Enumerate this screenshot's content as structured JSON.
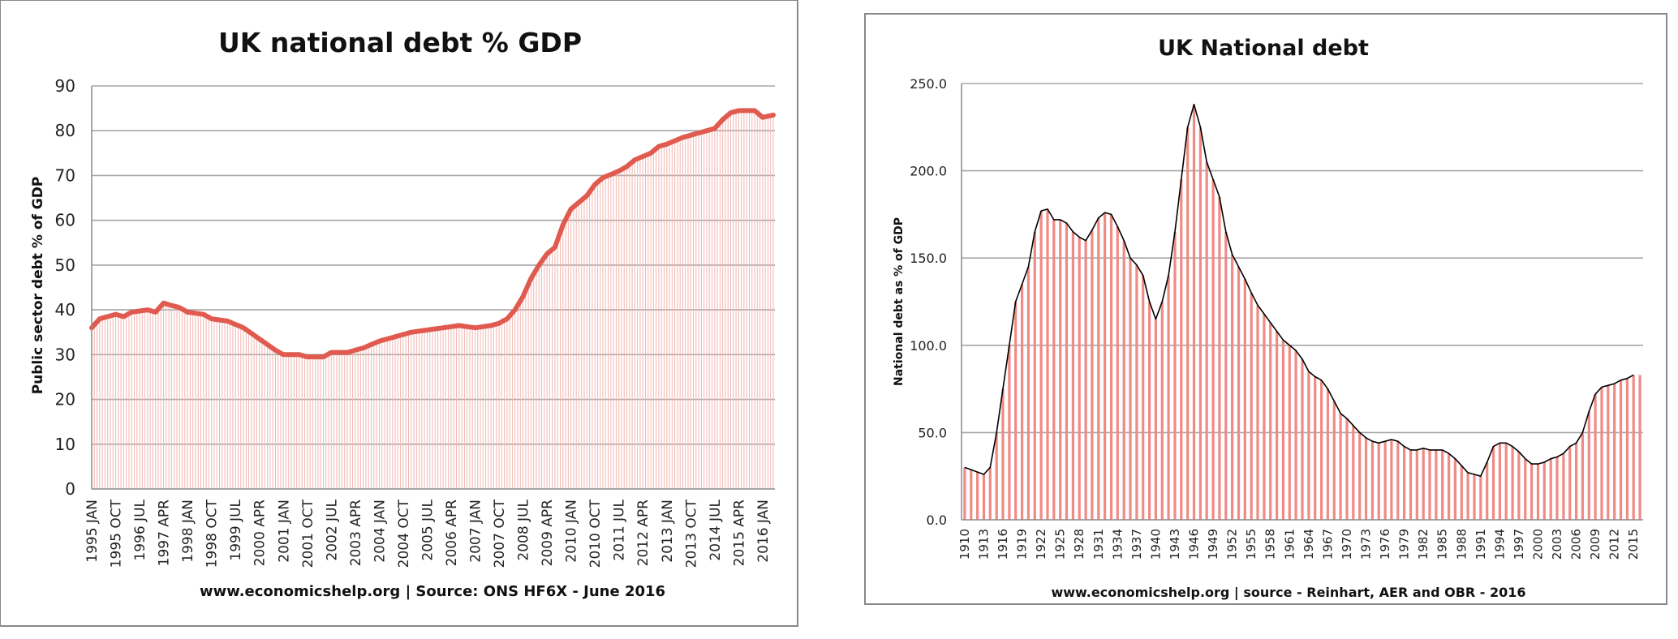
{
  "chart_data": [
    {
      "type": "area",
      "title": "UK national debt % GDP",
      "ylabel": "Public sector debt % of GDP",
      "xlabel": "",
      "source": "www.economicshelp.org | Source: ONS HF6X - June 2016",
      "ylim": [
        0,
        90
      ],
      "yticks": [
        "0",
        "10",
        "20",
        "30",
        "40",
        "50",
        "60",
        "70",
        "80",
        "90"
      ],
      "xtick_labels": [
        "1995 JAN",
        "1995 OCT",
        "1996 JUL",
        "1997 APR",
        "1998 JAN",
        "1998 OCT",
        "1999 JUL",
        "2000 APR",
        "2001 JAN",
        "2001 OCT",
        "2002 JUL",
        "2003 APR",
        "2004 JAN",
        "2004 OCT",
        "2005 JUL",
        "2006 APR",
        "2007 JAN",
        "2007 OCT",
        "2008 JUL",
        "2009 APR",
        "2010 JAN",
        "2010 OCT",
        "2011 JUL",
        "2012 APR",
        "2013 JAN",
        "2013 OCT",
        "2014 JUL",
        "2015 APR",
        "2016 JAN"
      ],
      "grid": true,
      "legend": "none",
      "colors": {
        "line": "#e05a4f",
        "bars": "#f3b6b1",
        "grid": "#a6a6a6"
      },
      "x_start": "1995 JAN",
      "x_end": "2016 MAY",
      "series": [
        {
          "anchors": [
            [
              "1995-01",
              36
            ],
            [
              "1995-04",
              38
            ],
            [
              "1995-10",
              39
            ],
            [
              "1996-01",
              38.5
            ],
            [
              "1996-04",
              39.5
            ],
            [
              "1996-10",
              40
            ],
            [
              "1997-01",
              39.5
            ],
            [
              "1997-04",
              41.5
            ],
            [
              "1997-10",
              40.5
            ],
            [
              "1998-01",
              39.5
            ],
            [
              "1998-07",
              39
            ],
            [
              "1998-10",
              38
            ],
            [
              "1999-04",
              37.5
            ],
            [
              "1999-10",
              36
            ],
            [
              "2000-04",
              33.5
            ],
            [
              "2000-10",
              31
            ],
            [
              "2001-01",
              30
            ],
            [
              "2001-07",
              30
            ],
            [
              "2001-10",
              29.5
            ],
            [
              "2002-04",
              29.5
            ],
            [
              "2002-07",
              30.5
            ],
            [
              "2003-01",
              30.5
            ],
            [
              "2003-07",
              31.5
            ],
            [
              "2004-01",
              33
            ],
            [
              "2004-07",
              34
            ],
            [
              "2005-01",
              35
            ],
            [
              "2005-07",
              35.5
            ],
            [
              "2006-01",
              36
            ],
            [
              "2006-07",
              36.5
            ],
            [
              "2007-01",
              36
            ],
            [
              "2007-07",
              36.5
            ],
            [
              "2007-10",
              37
            ],
            [
              "2008-01",
              38
            ],
            [
              "2008-04",
              40
            ],
            [
              "2008-07",
              43
            ],
            [
              "2008-10",
              47
            ],
            [
              "2009-01",
              50
            ],
            [
              "2009-04",
              52.5
            ],
            [
              "2009-07",
              54
            ],
            [
              "2009-10",
              59
            ],
            [
              "2010-01",
              62.5
            ],
            [
              "2010-07",
              65.5
            ],
            [
              "2010-10",
              68
            ],
            [
              "2011-01",
              69.5
            ],
            [
              "2011-07",
              71
            ],
            [
              "2011-10",
              72
            ],
            [
              "2012-01",
              73.5
            ],
            [
              "2012-07",
              75
            ],
            [
              "2012-10",
              76.5
            ],
            [
              "2013-01",
              77
            ],
            [
              "2013-07",
              78.5
            ],
            [
              "2013-10",
              79
            ],
            [
              "2014-01",
              79.5
            ],
            [
              "2014-07",
              80.5
            ],
            [
              "2014-10",
              82.5
            ],
            [
              "2015-01",
              84
            ],
            [
              "2015-04",
              84.5
            ],
            [
              "2015-10",
              84.5
            ],
            [
              "2016-01",
              83
            ],
            [
              "2016-05",
              83.5
            ]
          ]
        }
      ]
    },
    {
      "type": "area",
      "title": "UK National debt",
      "ylabel": "National debt as % of GDP",
      "xlabel": "",
      "source": "www.economicshelp.org | source - Reinhart, AER and OBR - 2016",
      "ylim": [
        0,
        250
      ],
      "yticks": [
        "0.0",
        "50.0",
        "100.0",
        "150.0",
        "200.0",
        "250.0"
      ],
      "xtick_labels": [
        "1910",
        "1913",
        "1916",
        "1919",
        "1922",
        "1925",
        "1928",
        "1931",
        "1934",
        "1937",
        "1940",
        "1943",
        "1946",
        "1949",
        "1952",
        "1955",
        "1958",
        "1961",
        "1964",
        "1967",
        "1970",
        "1973",
        "1976",
        "1979",
        "1982",
        "1985",
        "1988",
        "1991",
        "1994",
        "1997",
        "2000",
        "2003",
        "2006",
        "2009",
        "2012",
        "2015"
      ],
      "grid": true,
      "legend": "none",
      "colors": {
        "line": "#000000",
        "bars": "#f08a84",
        "grid": "#a6a6a6"
      },
      "x_start": 1910,
      "x_end": 2016,
      "series": [
        {
          "anchors": [
            [
              1910,
              30
            ],
            [
              1913,
              26
            ],
            [
              1914,
              30
            ],
            [
              1915,
              50
            ],
            [
              1916,
              75
            ],
            [
              1917,
              100
            ],
            [
              1918,
              125
            ],
            [
              1919,
              135
            ],
            [
              1920,
              145
            ],
            [
              1921,
              165
            ],
            [
              1922,
              177
            ],
            [
              1923,
              178
            ],
            [
              1924,
              172
            ],
            [
              1925,
              172
            ],
            [
              1926,
              170
            ],
            [
              1927,
              165
            ],
            [
              1928,
              162
            ],
            [
              1929,
              160
            ],
            [
              1930,
              166
            ],
            [
              1931,
              173
            ],
            [
              1932,
              176
            ],
            [
              1933,
              175
            ],
            [
              1934,
              168
            ],
            [
              1935,
              160
            ],
            [
              1936,
              150
            ],
            [
              1937,
              146
            ],
            [
              1938,
              140
            ],
            [
              1939,
              125
            ],
            [
              1940,
              115
            ],
            [
              1941,
              125
            ],
            [
              1942,
              140
            ],
            [
              1943,
              165
            ],
            [
              1944,
              195
            ],
            [
              1945,
              225
            ],
            [
              1946,
              238
            ],
            [
              1947,
              225
            ],
            [
              1948,
              205
            ],
            [
              1949,
              195
            ],
            [
              1950,
              185
            ],
            [
              1951,
              165
            ],
            [
              1952,
              152
            ],
            [
              1953,
              145
            ],
            [
              1954,
              138
            ],
            [
              1955,
              130
            ],
            [
              1956,
              123
            ],
            [
              1957,
              118
            ],
            [
              1958,
              113
            ],
            [
              1959,
              108
            ],
            [
              1960,
              103
            ],
            [
              1961,
              100
            ],
            [
              1962,
              97
            ],
            [
              1963,
              92
            ],
            [
              1964,
              85
            ],
            [
              1965,
              82
            ],
            [
              1966,
              80
            ],
            [
              1967,
              75
            ],
            [
              1968,
              68
            ],
            [
              1969,
              61
            ],
            [
              1970,
              58
            ],
            [
              1971,
              54
            ],
            [
              1972,
              50
            ],
            [
              1973,
              47
            ],
            [
              1974,
              45
            ],
            [
              1975,
              44
            ],
            [
              1976,
              45
            ],
            [
              1977,
              46
            ],
            [
              1978,
              45
            ],
            [
              1979,
              42
            ],
            [
              1980,
              40
            ],
            [
              1981,
              40
            ],
            [
              1982,
              41
            ],
            [
              1983,
              40
            ],
            [
              1984,
              40
            ],
            [
              1985,
              40
            ],
            [
              1986,
              38
            ],
            [
              1987,
              35
            ],
            [
              1988,
              31
            ],
            [
              1989,
              27
            ],
            [
              1990,
              26
            ],
            [
              1991,
              25
            ],
            [
              1992,
              33
            ],
            [
              1993,
              42
            ],
            [
              1994,
              44
            ],
            [
              1995,
              44
            ],
            [
              1996,
              42
            ],
            [
              1997,
              39
            ],
            [
              1998,
              35
            ],
            [
              1999,
              32
            ],
            [
              2000,
              32
            ],
            [
              2001,
              33
            ],
            [
              2002,
              35
            ],
            [
              2003,
              36
            ],
            [
              2004,
              38
            ],
            [
              2005,
              42
            ],
            [
              2006,
              44
            ],
            [
              2007,
              50
            ],
            [
              2008,
              62
            ],
            [
              2009,
              72
            ],
            [
              2010,
              76
            ],
            [
              2011,
              77
            ],
            [
              2012,
              78
            ],
            [
              2013,
              80
            ],
            [
              2014,
              81
            ],
            [
              2015,
              83
            ]
          ]
        }
      ]
    }
  ]
}
